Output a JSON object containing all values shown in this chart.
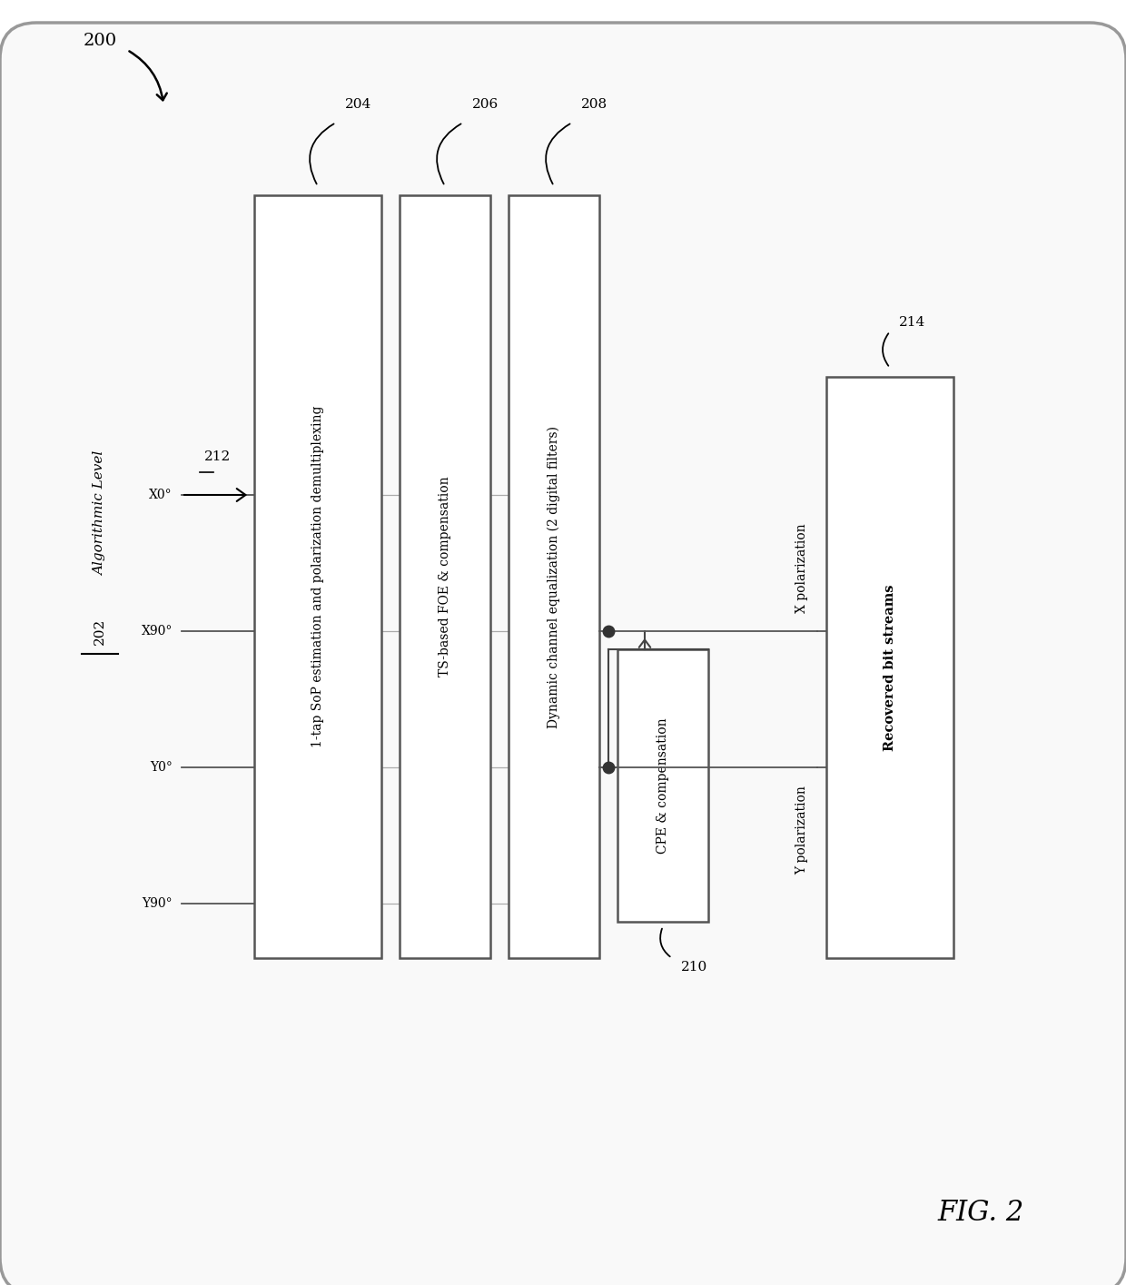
{
  "fig_width": 12.4,
  "fig_height": 14.15,
  "bg_color": "#ffffff",
  "title_label": "FIG. 2",
  "diagram_label": "200",
  "algo_label": "Algorithmic Level",
  "algo_sublabel": "202",
  "input_labels": [
    "Y90°",
    "Y0°",
    "X90°",
    "X0°"
  ],
  "input_arrow_label": "212",
  "blocks": [
    {
      "label": "1-tap SoP estimation and polarization demultiplexing",
      "ref": "204"
    },
    {
      "label": "TS-based FOE & compensation",
      "ref": "206"
    },
    {
      "label": "Dynamic channel equalization (2 digital filters)",
      "ref": "208"
    }
  ],
  "cpe_block": {
    "label": "CPE & compensation",
    "ref": "210"
  },
  "output_block": {
    "label": "Recovered bit streams",
    "ref": "214"
  },
  "x_pol_label": "X polarization",
  "y_pol_label": "Y polarization"
}
